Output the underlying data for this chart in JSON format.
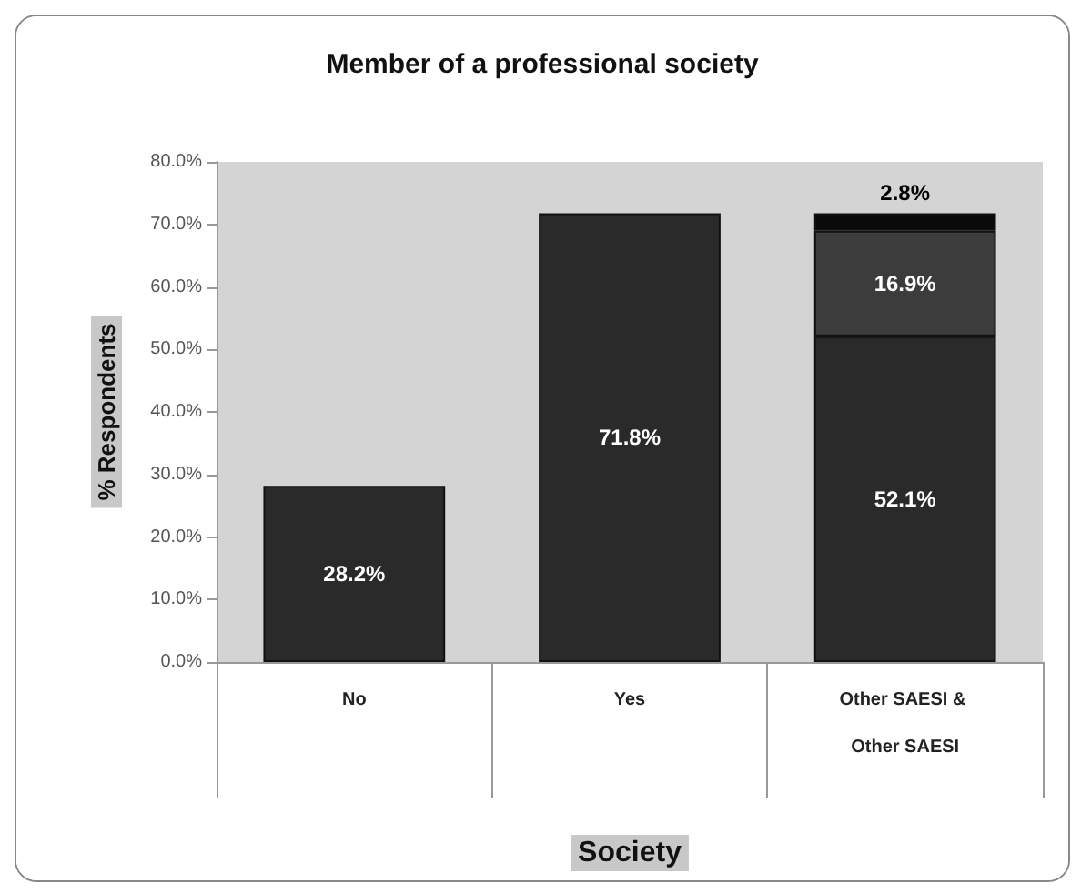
{
  "chart_data": {
    "type": "bar",
    "title": "Member of a professional society",
    "xlabel": "Society",
    "ylabel": "% Respondents",
    "categories": [
      "No",
      "Yes",
      "Other SAESI & Other SAESI"
    ],
    "stacked": true,
    "series": [
      {
        "color": "#2a2a2a",
        "values": [
          28.2,
          71.8,
          52.1
        ],
        "value_labels": [
          "28.2%",
          "71.8%",
          "52.1%"
        ]
      },
      {
        "color": "#3c3c3c",
        "values": [
          null,
          null,
          16.9
        ],
        "value_labels": [
          null,
          null,
          "16.9%"
        ]
      },
      {
        "color": "#0a0a0a",
        "values": [
          null,
          null,
          2.8
        ],
        "value_labels": [
          null,
          null,
          "2.8%"
        ]
      }
    ],
    "ylim": [
      0,
      80
    ],
    "yticks": [
      {
        "value": 0,
        "label": "0.0%"
      },
      {
        "value": 10,
        "label": "10.0%"
      },
      {
        "value": 20,
        "label": "20.0%"
      },
      {
        "value": 30,
        "label": "30.0%"
      },
      {
        "value": 40,
        "label": "40.0%"
      },
      {
        "value": 50,
        "label": "50.0%"
      },
      {
        "value": 60,
        "label": "60.0%"
      },
      {
        "value": 70,
        "label": "70.0%"
      },
      {
        "value": 80,
        "label": "80.0%"
      }
    ],
    "grid": false
  }
}
